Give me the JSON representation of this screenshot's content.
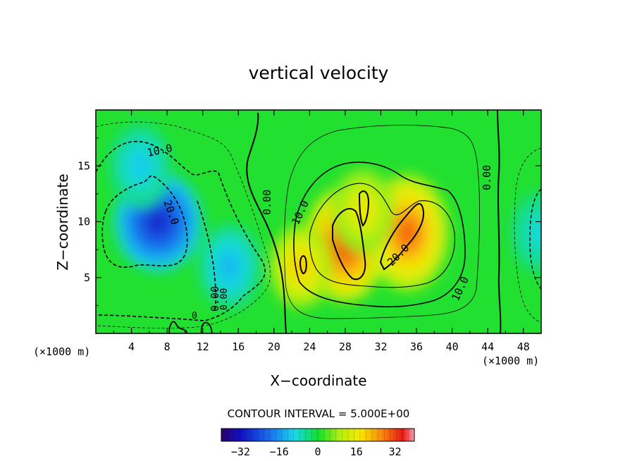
{
  "chart_data": {
    "type": "heatmap",
    "title": "vertical velocity",
    "xlabel": "X−coordinate",
    "ylabel": "Z−coordinate",
    "x_unit": "(×1000 m)",
    "y_unit": "(×1000 m)",
    "xlim": [
      0,
      50
    ],
    "ylim": [
      0,
      20
    ],
    "x_ticks": [
      4,
      8,
      12,
      16,
      20,
      24,
      28,
      32,
      36,
      40,
      44,
      48
    ],
    "y_ticks": [
      5,
      10,
      15
    ],
    "contour_interval_text": "CONTOUR INTERVAL = 5.000E+00",
    "contour_levels_labeled": [
      "10.0",
      "20.0",
      "0.00",
      "10.0",
      "20.0",
      "10.0",
      "0.00",
      "0.00",
      "0.00",
      "0"
    ],
    "colorbar": {
      "min": -40,
      "max": 40,
      "ticks": [
        -32,
        -16,
        0,
        16,
        32
      ],
      "tick_labels": [
        "−32",
        "−16",
        "0",
        "16",
        "32"
      ]
    },
    "field_features": [
      {
        "kind": "downdraft",
        "x": 7,
        "z": 10,
        "value": -30
      },
      {
        "kind": "downdraft",
        "x": 5,
        "z": 15,
        "value": -12
      },
      {
        "kind": "downdraft",
        "x": 15,
        "z": 6,
        "value": -14
      },
      {
        "kind": "downdraft",
        "x": 50,
        "z": 9,
        "value": -10
      },
      {
        "kind": "updraft",
        "x": 28,
        "z": 8,
        "value": 33
      },
      {
        "kind": "updraft",
        "x": 35,
        "z": 9,
        "value": 30
      },
      {
        "kind": "updraft",
        "x": 23,
        "z": 6,
        "value": 22
      },
      {
        "kind": "updraft",
        "x": 30,
        "z": 11,
        "value": 18
      }
    ]
  },
  "ui": {
    "x_unit_label": "(×1000 m)",
    "y_unit_label": "(×1000 m)"
  }
}
